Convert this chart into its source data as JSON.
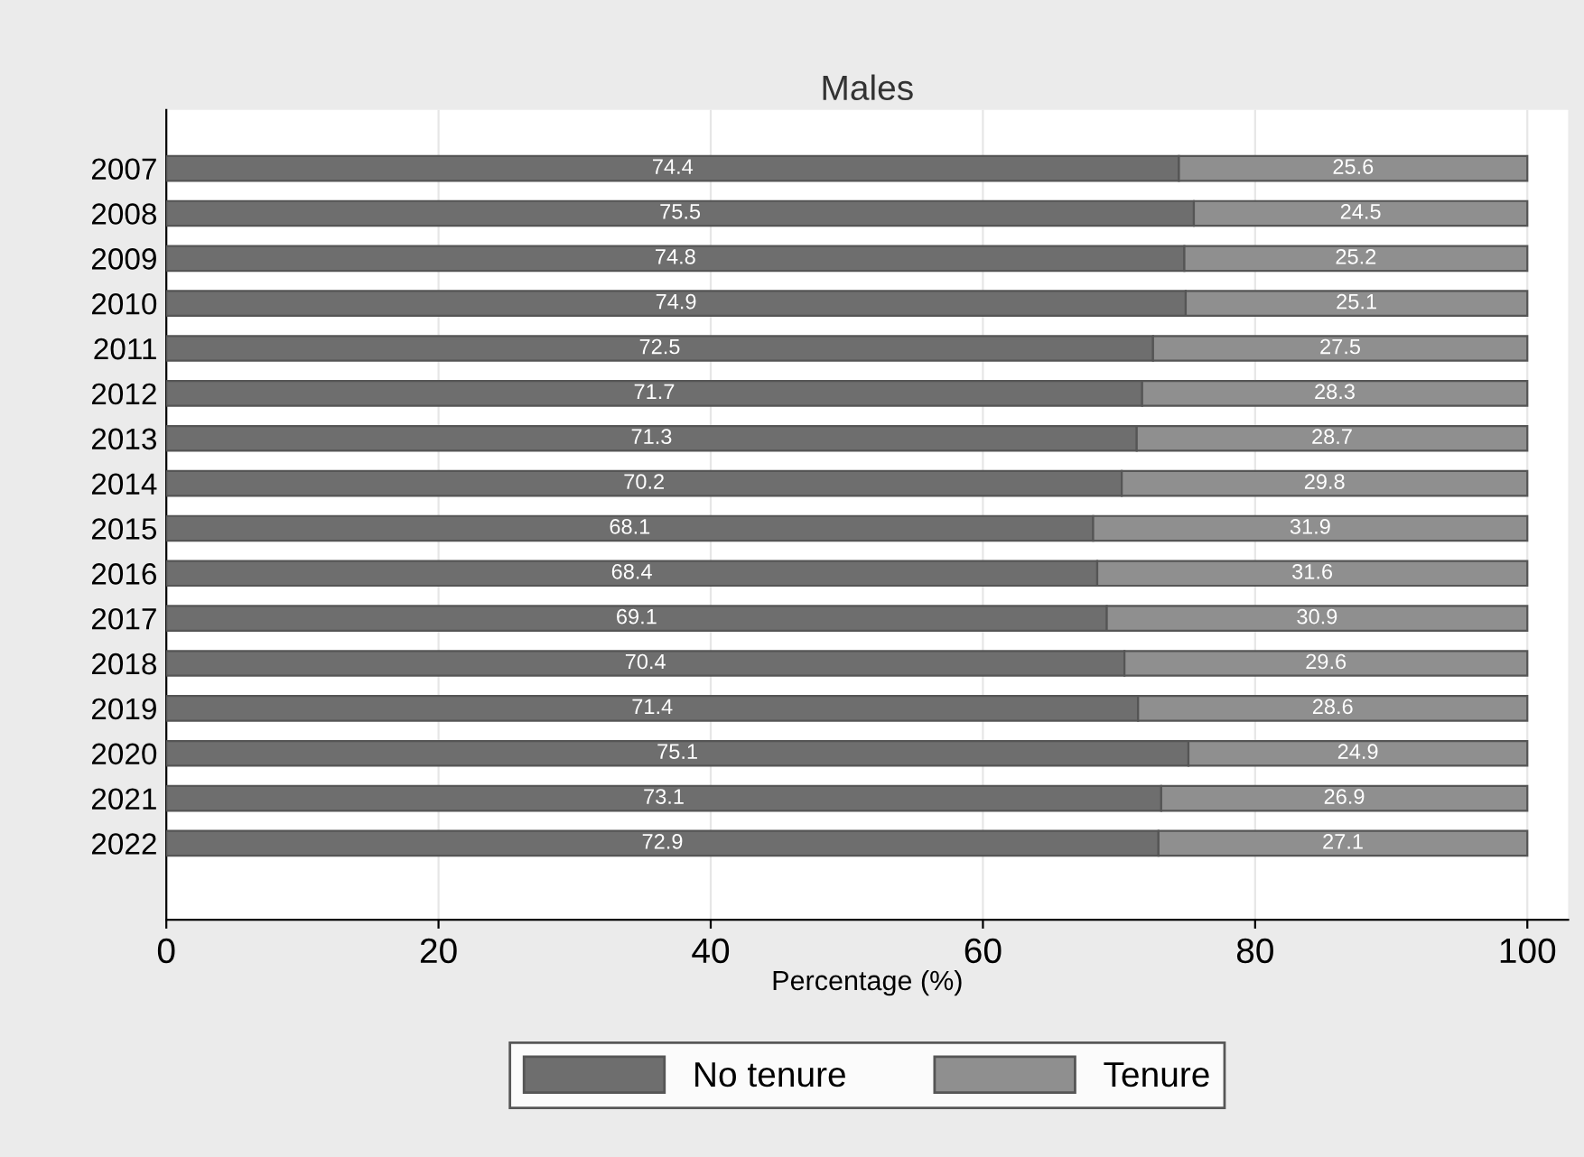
{
  "chart_data": {
    "type": "bar",
    "orientation": "horizontal",
    "stacked": true,
    "title": "Males",
    "xlabel": "Percentage (%)",
    "categories": [
      "2007",
      "2008",
      "2009",
      "2010",
      "2011",
      "2012",
      "2013",
      "2014",
      "2015",
      "2016",
      "2017",
      "2018",
      "2019",
      "2020",
      "2021",
      "2022"
    ],
    "series": [
      {
        "name": "No tenure",
        "color": "#6e6e6e",
        "values": [
          74.4,
          75.5,
          74.8,
          74.9,
          72.5,
          71.7,
          71.3,
          70.2,
          68.1,
          68.4,
          69.1,
          70.4,
          71.4,
          75.1,
          73.1,
          72.9
        ]
      },
      {
        "name": "Tenure",
        "color": "#8f8f8f",
        "values": [
          25.6,
          24.5,
          25.2,
          25.1,
          27.5,
          28.3,
          28.7,
          29.8,
          31.9,
          31.6,
          30.9,
          29.6,
          28.6,
          24.9,
          26.9,
          27.1
        ]
      }
    ],
    "xlim": [
      0,
      103
    ],
    "xticks": [
      0,
      20,
      40,
      60,
      80,
      100
    ],
    "grid": "x",
    "legend": "bottom",
    "data_labels": true
  }
}
